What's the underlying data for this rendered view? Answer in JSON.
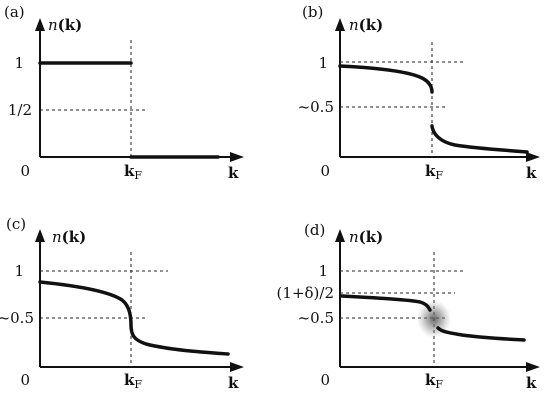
{
  "panels": [
    {
      "id": "a",
      "label": "(a)",
      "ylabel_n": "n",
      "ylabel_k": "(k)",
      "yticks": [
        "1",
        "1/2"
      ],
      "origin": "0",
      "xtick_k": "k",
      "xtick_sub": "F",
      "xlabel": "k"
    },
    {
      "id": "b",
      "label": "(b)",
      "ylabel_n": "n",
      "ylabel_k": "(k)",
      "yticks": [
        "1",
        "~0.5"
      ],
      "origin": "0",
      "xtick_k": "k",
      "xtick_sub": "F",
      "xlabel": "k"
    },
    {
      "id": "c",
      "label": "(c)",
      "ylabel_n": "n",
      "ylabel_k": "(k)",
      "yticks": [
        "1",
        "~0.5"
      ],
      "origin": "0",
      "xtick_k": "k",
      "xtick_sub": "F",
      "xlabel": "k"
    },
    {
      "id": "d",
      "label": "(d)",
      "ylabel_n": "n",
      "ylabel_k": "(k)",
      "yticks": [
        "1",
        "(1+δ)/2",
        "~0.5"
      ],
      "origin": "0",
      "xtick_k": "k",
      "xtick_sub": "F",
      "xlabel": "k"
    }
  ]
}
